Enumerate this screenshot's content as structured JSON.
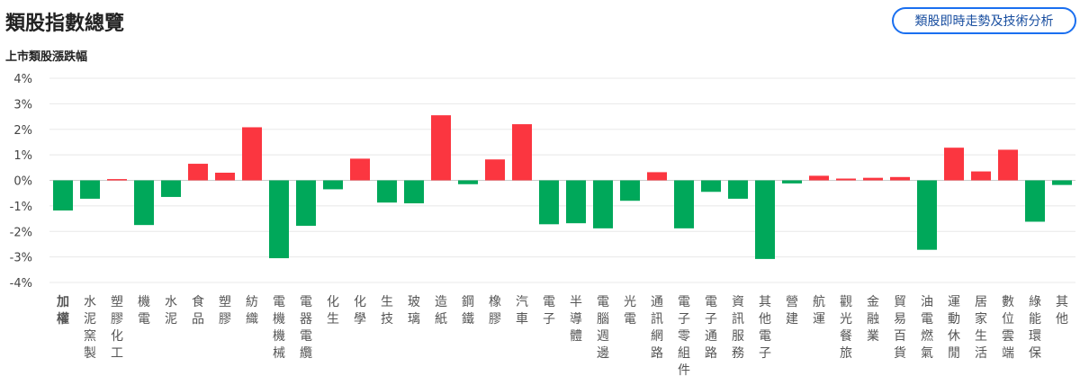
{
  "header": {
    "title": "類股指數總覽",
    "button_label": "類股即時走勢及技術分析"
  },
  "chart_data": {
    "type": "bar",
    "title": "上市類股漲跌幅",
    "xlabel": "",
    "ylabel": "",
    "ylim": [
      -4,
      4
    ],
    "yticks": [
      "4%",
      "3%",
      "2%",
      "1%",
      "0%",
      "-1%",
      "-2%",
      "-3%",
      "-4%"
    ],
    "ytick_values": [
      4,
      3,
      2,
      1,
      0,
      -1,
      -2,
      -3,
      -4
    ],
    "grid": "horizontal",
    "colors": {
      "up": "#fb3640",
      "down": "#00a85a"
    },
    "categories": [
      "加權",
      "水泥窯製",
      "塑膠化工",
      "機電",
      "水泥",
      "食品",
      "塑膠",
      "紡織",
      "電機機械",
      "電器電纜",
      "化生",
      "化學",
      "生技",
      "玻璃",
      "造紙",
      "鋼鐵",
      "橡膠",
      "汽車",
      "電子",
      "半導體",
      "電腦週邊",
      "光電",
      "通訊網路",
      "電子零組件",
      "電子通路",
      "資訊服務",
      "其他電子",
      "營建",
      "航運",
      "觀光餐旅",
      "金融業",
      "貿易百貨",
      "油電燃氣",
      "運動休閒",
      "居家生活",
      "數位雲端",
      "綠能環保",
      "其他"
    ],
    "values": [
      -1.18,
      -0.72,
      0.05,
      -1.75,
      -0.65,
      0.65,
      0.3,
      2.08,
      -3.05,
      -1.78,
      -0.35,
      0.85,
      -0.87,
      -0.9,
      2.55,
      -0.15,
      0.82,
      2.2,
      -1.72,
      -1.68,
      -1.88,
      -0.8,
      0.32,
      -1.88,
      -0.45,
      -0.72,
      -3.08,
      -0.12,
      0.18,
      0.07,
      0.1,
      0.13,
      -2.72,
      1.28,
      0.35,
      1.2,
      -1.62,
      -0.18
    ]
  }
}
